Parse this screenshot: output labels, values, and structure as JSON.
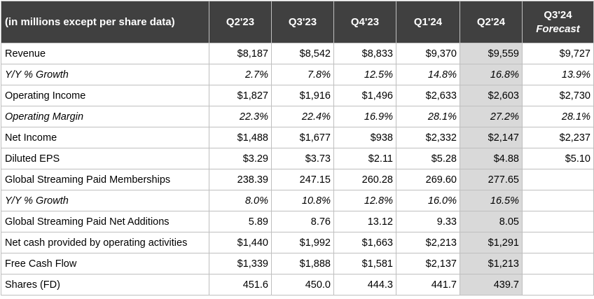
{
  "table": {
    "header": {
      "label": "(in millions except per share data)",
      "columns": [
        "Q2'23",
        "Q3'23",
        "Q4'23",
        "Q1'24",
        "Q2'24"
      ],
      "forecast": {
        "line1": "Q3'24",
        "line2": "Forecast"
      }
    },
    "highlight_color": "#d9d9d9",
    "header_bg": "#404040",
    "rows": [
      {
        "label": "Revenue",
        "italic": false,
        "values": [
          "$8,187",
          "$8,542",
          "$8,833",
          "$9,370",
          "$9,559",
          "$9,727"
        ]
      },
      {
        "label": "Y/Y % Growth",
        "italic": true,
        "values": [
          "2.7%",
          "7.8%",
          "12.5%",
          "14.8%",
          "16.8%",
          "13.9%"
        ]
      },
      {
        "label": "Operating Income",
        "italic": false,
        "values": [
          "$1,827",
          "$1,916",
          "$1,496",
          "$2,633",
          "$2,603",
          "$2,730"
        ]
      },
      {
        "label": "Operating Margin",
        "italic": true,
        "values": [
          "22.3%",
          "22.4%",
          "16.9%",
          "28.1%",
          "27.2%",
          "28.1%"
        ]
      },
      {
        "label": "Net Income",
        "italic": false,
        "values": [
          "$1,488",
          "$1,677",
          "$938",
          "$2,332",
          "$2,147",
          "$2,237"
        ]
      },
      {
        "label": "Diluted EPS",
        "italic": false,
        "values": [
          "$3.29",
          "$3.73",
          "$2.11",
          "$5.28",
          "$4.88",
          "$5.10"
        ]
      },
      {
        "label": "Global Streaming Paid Memberships",
        "italic": false,
        "values": [
          "238.39",
          "247.15",
          "260.28",
          "269.60",
          "277.65",
          ""
        ]
      },
      {
        "label": "Y/Y % Growth",
        "italic": true,
        "values": [
          "8.0%",
          "10.8%",
          "12.8%",
          "16.0%",
          "16.5%",
          ""
        ]
      },
      {
        "label": "Global Streaming Paid Net Additions",
        "italic": false,
        "values": [
          "5.89",
          "8.76",
          "13.12",
          "9.33",
          "8.05",
          ""
        ]
      },
      {
        "label": "Net cash provided by operating activities",
        "italic": false,
        "values": [
          "$1,440",
          "$1,992",
          "$1,663",
          "$2,213",
          "$1,291",
          ""
        ]
      },
      {
        "label": "Free Cash Flow",
        "italic": false,
        "values": [
          "$1,339",
          "$1,888",
          "$1,581",
          "$2,137",
          "$1,213",
          ""
        ]
      },
      {
        "label": "Shares (FD)",
        "italic": false,
        "values": [
          "451.6",
          "450.0",
          "444.3",
          "441.7",
          "439.7",
          ""
        ]
      }
    ]
  }
}
